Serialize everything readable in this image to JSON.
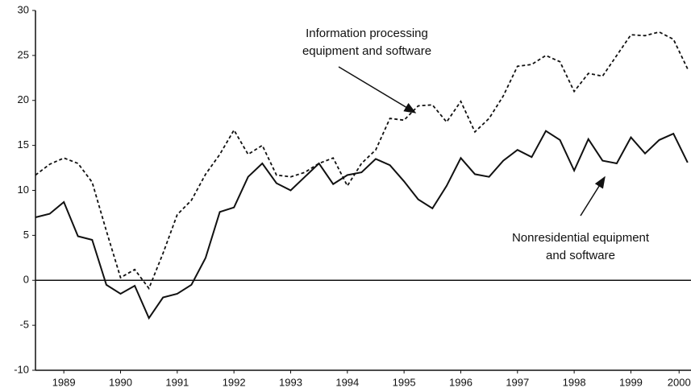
{
  "chart_data": {
    "type": "line",
    "x": [
      1989,
      1989.25,
      1989.5,
      1989.75,
      1990,
      1990.25,
      1990.5,
      1990.75,
      1991,
      1991.25,
      1991.5,
      1991.75,
      1992,
      1992.25,
      1992.5,
      1992.75,
      1993,
      1993.25,
      1993.5,
      1993.75,
      1994,
      1994.25,
      1994.5,
      1994.75,
      1995,
      1995.25,
      1995.5,
      1995.75,
      1996,
      1996.25,
      1996.5,
      1996.75,
      1997,
      1997.25,
      1997.5,
      1997.75,
      1998,
      1998.25,
      1998.5,
      1998.75,
      1999,
      1999.25,
      1999.5,
      1999.75,
      2000,
      2000.25,
      2000.5
    ],
    "series": [
      {
        "color": "#111111",
        "style": "dashed",
        "values": [
          11.7,
          12.9,
          13.6,
          13.0,
          10.9,
          5.5,
          0.3,
          1.2,
          -0.9,
          3.0,
          7.3,
          8.9,
          11.8,
          14.0,
          16.7,
          14.0,
          15.0,
          11.7,
          11.5,
          12.0,
          13.0,
          13.6,
          10.5,
          13.0,
          14.5,
          18.0,
          17.8,
          19.4,
          19.5,
          17.6,
          19.9,
          16.5,
          18.0,
          20.5,
          23.8,
          24.0,
          25.0,
          24.3,
          21.0,
          23.0,
          22.7,
          25.0,
          27.3,
          27.2,
          27.6,
          26.8,
          23.5
        ]
      },
      {
        "color": "#111111",
        "style": "solid",
        "values": [
          7.0,
          7.4,
          8.7,
          4.9,
          4.5,
          -0.5,
          -1.5,
          -0.6,
          -4.2,
          -1.9,
          -1.5,
          -0.5,
          2.5,
          7.6,
          8.1,
          11.5,
          13.0,
          10.8,
          10.0,
          11.5,
          13.0,
          10.7,
          11.7,
          12.0,
          13.5,
          12.8,
          11.0,
          9.0,
          8.0,
          10.5,
          13.6,
          11.8,
          11.5,
          13.3,
          14.5,
          13.7,
          16.6,
          15.6,
          12.2,
          15.7,
          13.3,
          13.0,
          15.9,
          14.1,
          15.6,
          16.3,
          13.1
        ]
      }
    ],
    "annotations": [
      {
        "lines": [
          "Information processing",
          "equipment and software"
        ]
      },
      {
        "lines": [
          "Nonresidential equipment",
          "and software"
        ]
      }
    ],
    "xlim": [
      1989,
      2000.56
    ],
    "xticks": [
      {
        "value": 1989.5,
        "label": "1989"
      },
      {
        "value": 1990.5,
        "label": "1990"
      },
      {
        "value": 1991.5,
        "label": "1991"
      },
      {
        "value": 1992.5,
        "label": "1992"
      },
      {
        "value": 1993.5,
        "label": "1993"
      },
      {
        "value": 1994.5,
        "label": "1994"
      },
      {
        "value": 1995.5,
        "label": "1995"
      },
      {
        "value": 1996.5,
        "label": "1996"
      },
      {
        "value": 1997.5,
        "label": "1997"
      },
      {
        "value": 1998.5,
        "label": "1998"
      },
      {
        "value": 1999.5,
        "label": "1999"
      },
      {
        "value": 2000.35,
        "label": "2000"
      }
    ],
    "ylim": [
      -10,
      30
    ],
    "yticks": [
      -10,
      -5,
      0,
      5,
      10,
      15,
      20,
      25,
      30
    ],
    "grid": false
  }
}
